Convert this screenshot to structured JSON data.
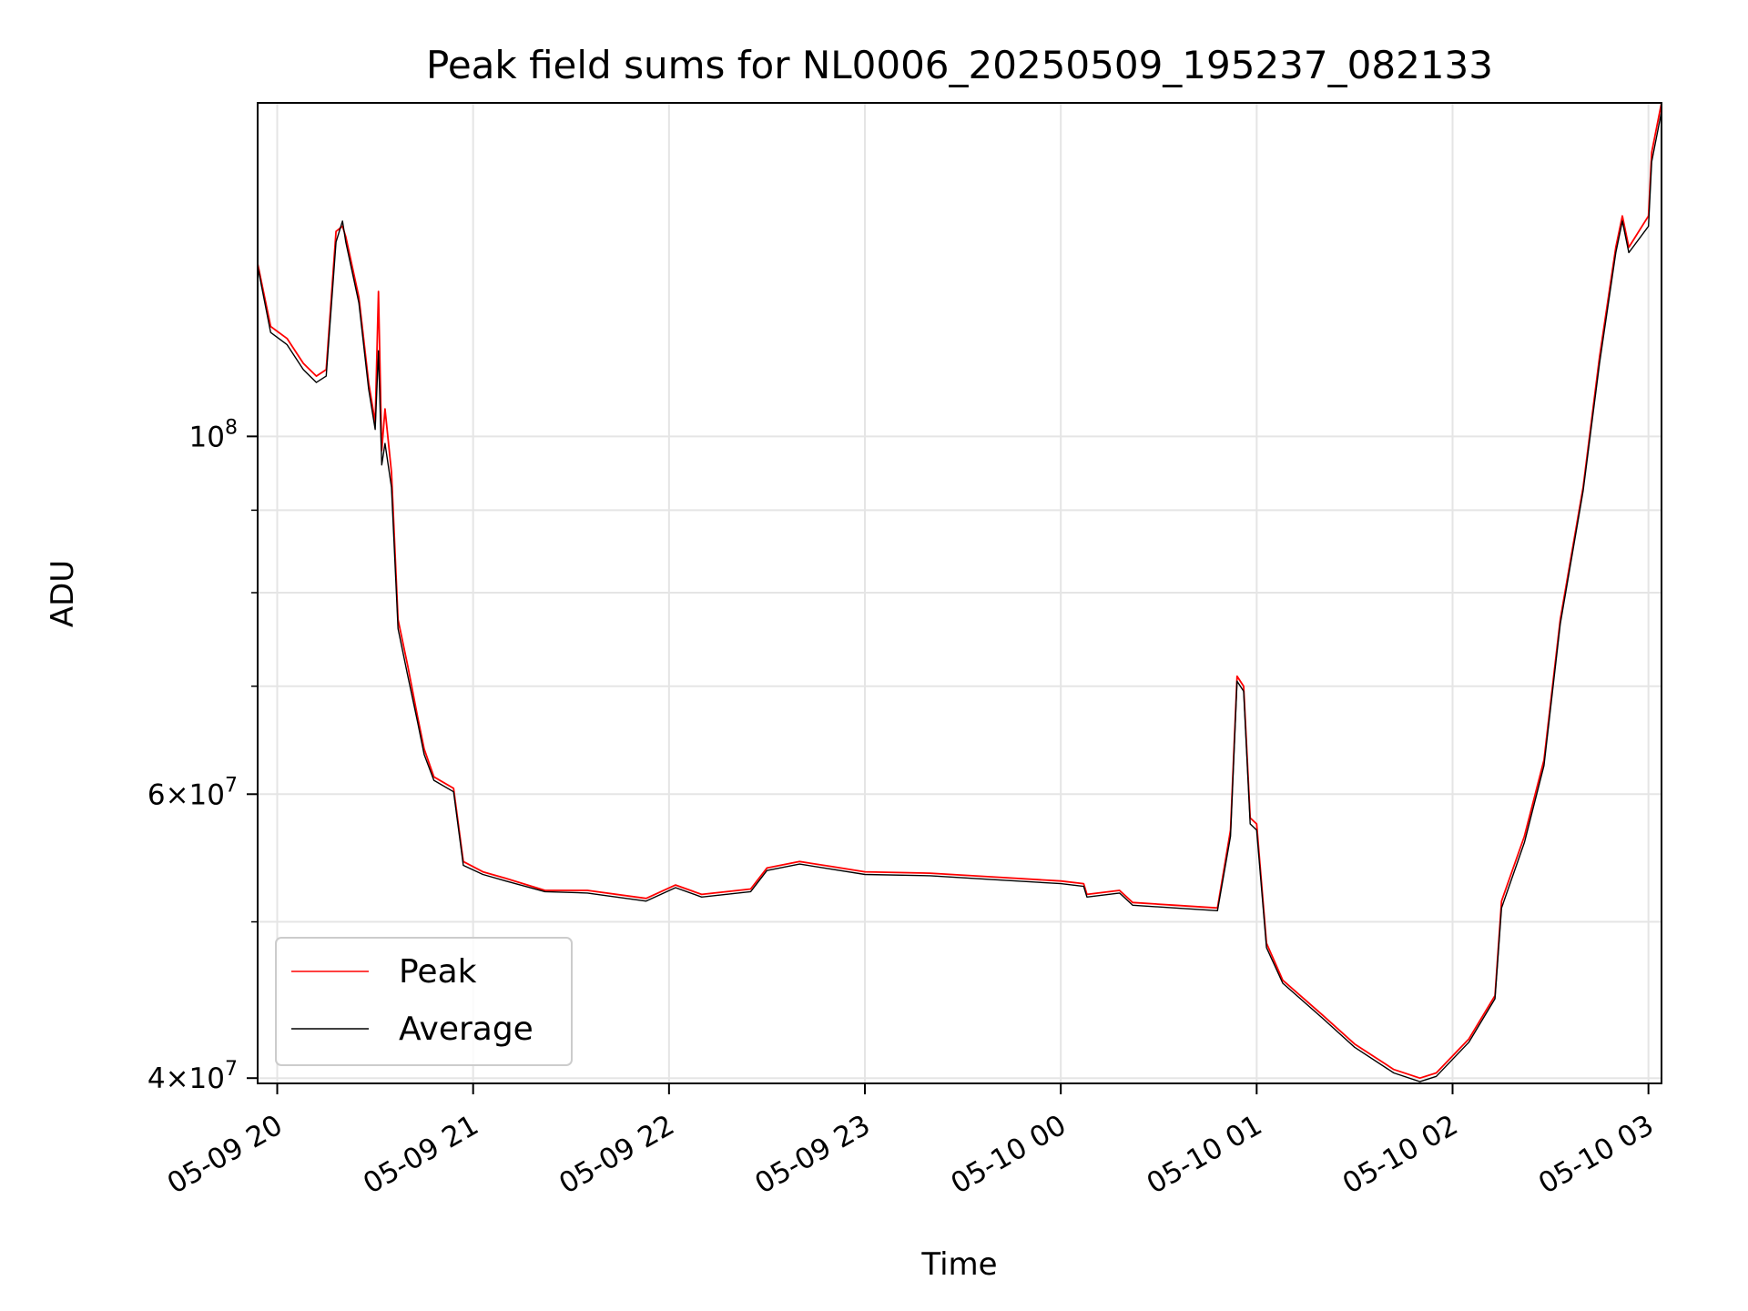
{
  "chart_data": {
    "type": "line",
    "title": "Peak field sums for NL0006_20250509_195237_082133",
    "xlabel": "Time",
    "ylabel": "ADU",
    "yscale": "log",
    "ylim": [
      39700000,
      161000000
    ],
    "xlim": [
      "2025-05-09 19:54",
      "2025-05-10 03:04"
    ],
    "grid": true,
    "legend_position": "lower-left",
    "x_ticks": [
      "05-09 20",
      "05-09 21",
      "05-09 22",
      "05-09 23",
      "05-10 00",
      "05-10 01",
      "05-10 02",
      "05-10 03"
    ],
    "y_major_ticks": [
      {
        "base": "10",
        "exp": "8",
        "value": 100000000
      },
      {
        "mant": "6",
        "base": "10",
        "exp": "7",
        "value": 60000000
      },
      {
        "mant": "4",
        "base": "10",
        "exp": "7",
        "value": 40000000
      }
    ],
    "y_minor_ticks": [
      50000000,
      70000000,
      80000000,
      90000000
    ],
    "series": [
      {
        "name": "Peak",
        "color": "#ff0000",
        "points": [
          [
            "2025-05-09 19:54",
            128000000
          ],
          [
            "2025-05-09 19:58",
            117000000
          ],
          [
            "2025-05-09 20:03",
            115000000
          ],
          [
            "2025-05-09 20:08",
            111000000
          ],
          [
            "2025-05-09 20:12",
            109000000
          ],
          [
            "2025-05-09 20:15",
            110000000
          ],
          [
            "2025-05-09 20:18",
            134000000
          ],
          [
            "2025-05-09 20:20",
            135000000
          ],
          [
            "2025-05-09 20:21",
            133000000
          ],
          [
            "2025-05-09 20:25",
            122000000
          ],
          [
            "2025-05-09 20:28",
            108000000
          ],
          [
            "2025-05-09 20:30",
            102000000
          ],
          [
            "2025-05-09 20:31",
            123000000
          ],
          [
            "2025-05-09 20:32",
            98000000
          ],
          [
            "2025-05-09 20:33",
            104000000
          ],
          [
            "2025-05-09 20:35",
            95000000
          ],
          [
            "2025-05-09 20:37",
            77000000
          ],
          [
            "2025-05-09 20:40",
            72000000
          ],
          [
            "2025-05-09 20:43",
            67000000
          ],
          [
            "2025-05-09 20:45",
            64000000
          ],
          [
            "2025-05-09 20:48",
            61500000
          ],
          [
            "2025-05-09 20:54",
            60500000
          ],
          [
            "2025-05-09 20:57",
            54500000
          ],
          [
            "2025-05-09 21:03",
            53700000
          ],
          [
            "2025-05-09 21:10",
            53200000
          ],
          [
            "2025-05-09 21:22",
            52300000
          ],
          [
            "2025-05-09 21:35",
            52300000
          ],
          [
            "2025-05-09 21:53",
            51700000
          ],
          [
            "2025-05-09 22:02",
            52700000
          ],
          [
            "2025-05-09 22:10",
            52000000
          ],
          [
            "2025-05-09 22:25",
            52400000
          ],
          [
            "2025-05-09 22:30",
            54000000
          ],
          [
            "2025-05-09 22:40",
            54500000
          ],
          [
            "2025-05-09 22:50",
            54100000
          ],
          [
            "2025-05-09 23:00",
            53700000
          ],
          [
            "2025-05-09 23:20",
            53600000
          ],
          [
            "2025-05-09 23:40",
            53300000
          ],
          [
            "2025-05-10 00:00",
            53000000
          ],
          [
            "2025-05-10 00:07",
            52800000
          ],
          [
            "2025-05-10 00:08",
            52000000
          ],
          [
            "2025-05-10 00:18",
            52300000
          ],
          [
            "2025-05-10 00:22",
            51400000
          ],
          [
            "2025-05-10 00:35",
            51200000
          ],
          [
            "2025-05-10 00:48",
            51000000
          ],
          [
            "2025-05-10 00:52",
            57000000
          ],
          [
            "2025-05-10 00:54",
            71000000
          ],
          [
            "2025-05-10 00:56",
            70000000
          ],
          [
            "2025-05-10 00:58",
            58000000
          ],
          [
            "2025-05-10 01:00",
            57500000
          ],
          [
            "2025-05-10 01:03",
            48500000
          ],
          [
            "2025-05-10 01:08",
            46000000
          ],
          [
            "2025-05-10 01:20",
            43800000
          ],
          [
            "2025-05-10 01:30",
            42000000
          ],
          [
            "2025-05-10 01:42",
            40500000
          ],
          [
            "2025-05-10 01:50",
            40000000
          ],
          [
            "2025-05-10 01:55",
            40300000
          ],
          [
            "2025-05-10 02:05",
            42300000
          ],
          [
            "2025-05-10 02:13",
            45000000
          ],
          [
            "2025-05-10 02:15",
            51500000
          ],
          [
            "2025-05-10 02:22",
            56500000
          ],
          [
            "2025-05-10 02:28",
            63000000
          ],
          [
            "2025-05-10 02:33",
            77000000
          ],
          [
            "2025-05-10 02:40",
            93000000
          ],
          [
            "2025-05-10 02:45",
            112000000
          ],
          [
            "2025-05-10 02:50",
            131000000
          ],
          [
            "2025-05-10 02:52",
            137000000
          ],
          [
            "2025-05-10 02:54",
            131000000
          ],
          [
            "2025-05-10 03:00",
            137000000
          ],
          [
            "2025-05-10 03:01",
            150000000
          ],
          [
            "2025-05-10 03:04",
            161000000
          ]
        ]
      },
      {
        "name": "Average",
        "color": "#000000",
        "points": [
          [
            "2025-05-09 19:54",
            127500000
          ],
          [
            "2025-05-09 19:58",
            116000000
          ],
          [
            "2025-05-09 20:03",
            114000000
          ],
          [
            "2025-05-09 20:08",
            110000000
          ],
          [
            "2025-05-09 20:12",
            108000000
          ],
          [
            "2025-05-09 20:15",
            109000000
          ],
          [
            "2025-05-09 20:18",
            132000000
          ],
          [
            "2025-05-09 20:20",
            136000000
          ],
          [
            "2025-05-09 20:21",
            132000000
          ],
          [
            "2025-05-09 20:25",
            121000000
          ],
          [
            "2025-05-09 20:28",
            107000000
          ],
          [
            "2025-05-09 20:30",
            101000000
          ],
          [
            "2025-05-09 20:31",
            113000000
          ],
          [
            "2025-05-09 20:32",
            96000000
          ],
          [
            "2025-05-09 20:33",
            99000000
          ],
          [
            "2025-05-09 20:35",
            93000000
          ],
          [
            "2025-05-09 20:37",
            76000000
          ],
          [
            "2025-05-09 20:40",
            71000000
          ],
          [
            "2025-05-09 20:43",
            66500000
          ],
          [
            "2025-05-09 20:45",
            63500000
          ],
          [
            "2025-05-09 20:48",
            61200000
          ],
          [
            "2025-05-09 20:54",
            60200000
          ],
          [
            "2025-05-09 20:57",
            54200000
          ],
          [
            "2025-05-09 21:03",
            53500000
          ],
          [
            "2025-05-09 21:10",
            53000000
          ],
          [
            "2025-05-09 21:22",
            52200000
          ],
          [
            "2025-05-09 21:35",
            52100000
          ],
          [
            "2025-05-09 21:53",
            51500000
          ],
          [
            "2025-05-09 22:02",
            52500000
          ],
          [
            "2025-05-09 22:10",
            51800000
          ],
          [
            "2025-05-09 22:25",
            52200000
          ],
          [
            "2025-05-09 22:30",
            53800000
          ],
          [
            "2025-05-09 22:40",
            54300000
          ],
          [
            "2025-05-09 22:50",
            53900000
          ],
          [
            "2025-05-09 23:00",
            53500000
          ],
          [
            "2025-05-09 23:20",
            53400000
          ],
          [
            "2025-05-09 23:40",
            53100000
          ],
          [
            "2025-05-10 00:00",
            52800000
          ],
          [
            "2025-05-10 00:07",
            52600000
          ],
          [
            "2025-05-10 00:08",
            51800000
          ],
          [
            "2025-05-10 00:18",
            52100000
          ],
          [
            "2025-05-10 00:22",
            51200000
          ],
          [
            "2025-05-10 00:35",
            51000000
          ],
          [
            "2025-05-10 00:48",
            50800000
          ],
          [
            "2025-05-10 00:52",
            56500000
          ],
          [
            "2025-05-10 00:54",
            70500000
          ],
          [
            "2025-05-10 00:56",
            69500000
          ],
          [
            "2025-05-10 00:58",
            57500000
          ],
          [
            "2025-05-10 01:00",
            57000000
          ],
          [
            "2025-05-10 01:03",
            48200000
          ],
          [
            "2025-05-10 01:08",
            45800000
          ],
          [
            "2025-05-10 01:20",
            43600000
          ],
          [
            "2025-05-10 01:30",
            41800000
          ],
          [
            "2025-05-10 01:42",
            40300000
          ],
          [
            "2025-05-10 01:50",
            39800000
          ],
          [
            "2025-05-10 01:55",
            40100000
          ],
          [
            "2025-05-10 02:05",
            42100000
          ],
          [
            "2025-05-10 02:13",
            44800000
          ],
          [
            "2025-05-10 02:15",
            51000000
          ],
          [
            "2025-05-10 02:22",
            56000000
          ],
          [
            "2025-05-10 02:28",
            62500000
          ],
          [
            "2025-05-10 02:33",
            76500000
          ],
          [
            "2025-05-10 02:40",
            92500000
          ],
          [
            "2025-05-10 02:45",
            111000000
          ],
          [
            "2025-05-10 02:50",
            130000000
          ],
          [
            "2025-05-10 02:52",
            136000000
          ],
          [
            "2025-05-10 02:54",
            130000000
          ],
          [
            "2025-05-10 03:00",
            135000000
          ],
          [
            "2025-05-10 03:01",
            148000000
          ],
          [
            "2025-05-10 03:04",
            159000000
          ]
        ]
      }
    ]
  }
}
